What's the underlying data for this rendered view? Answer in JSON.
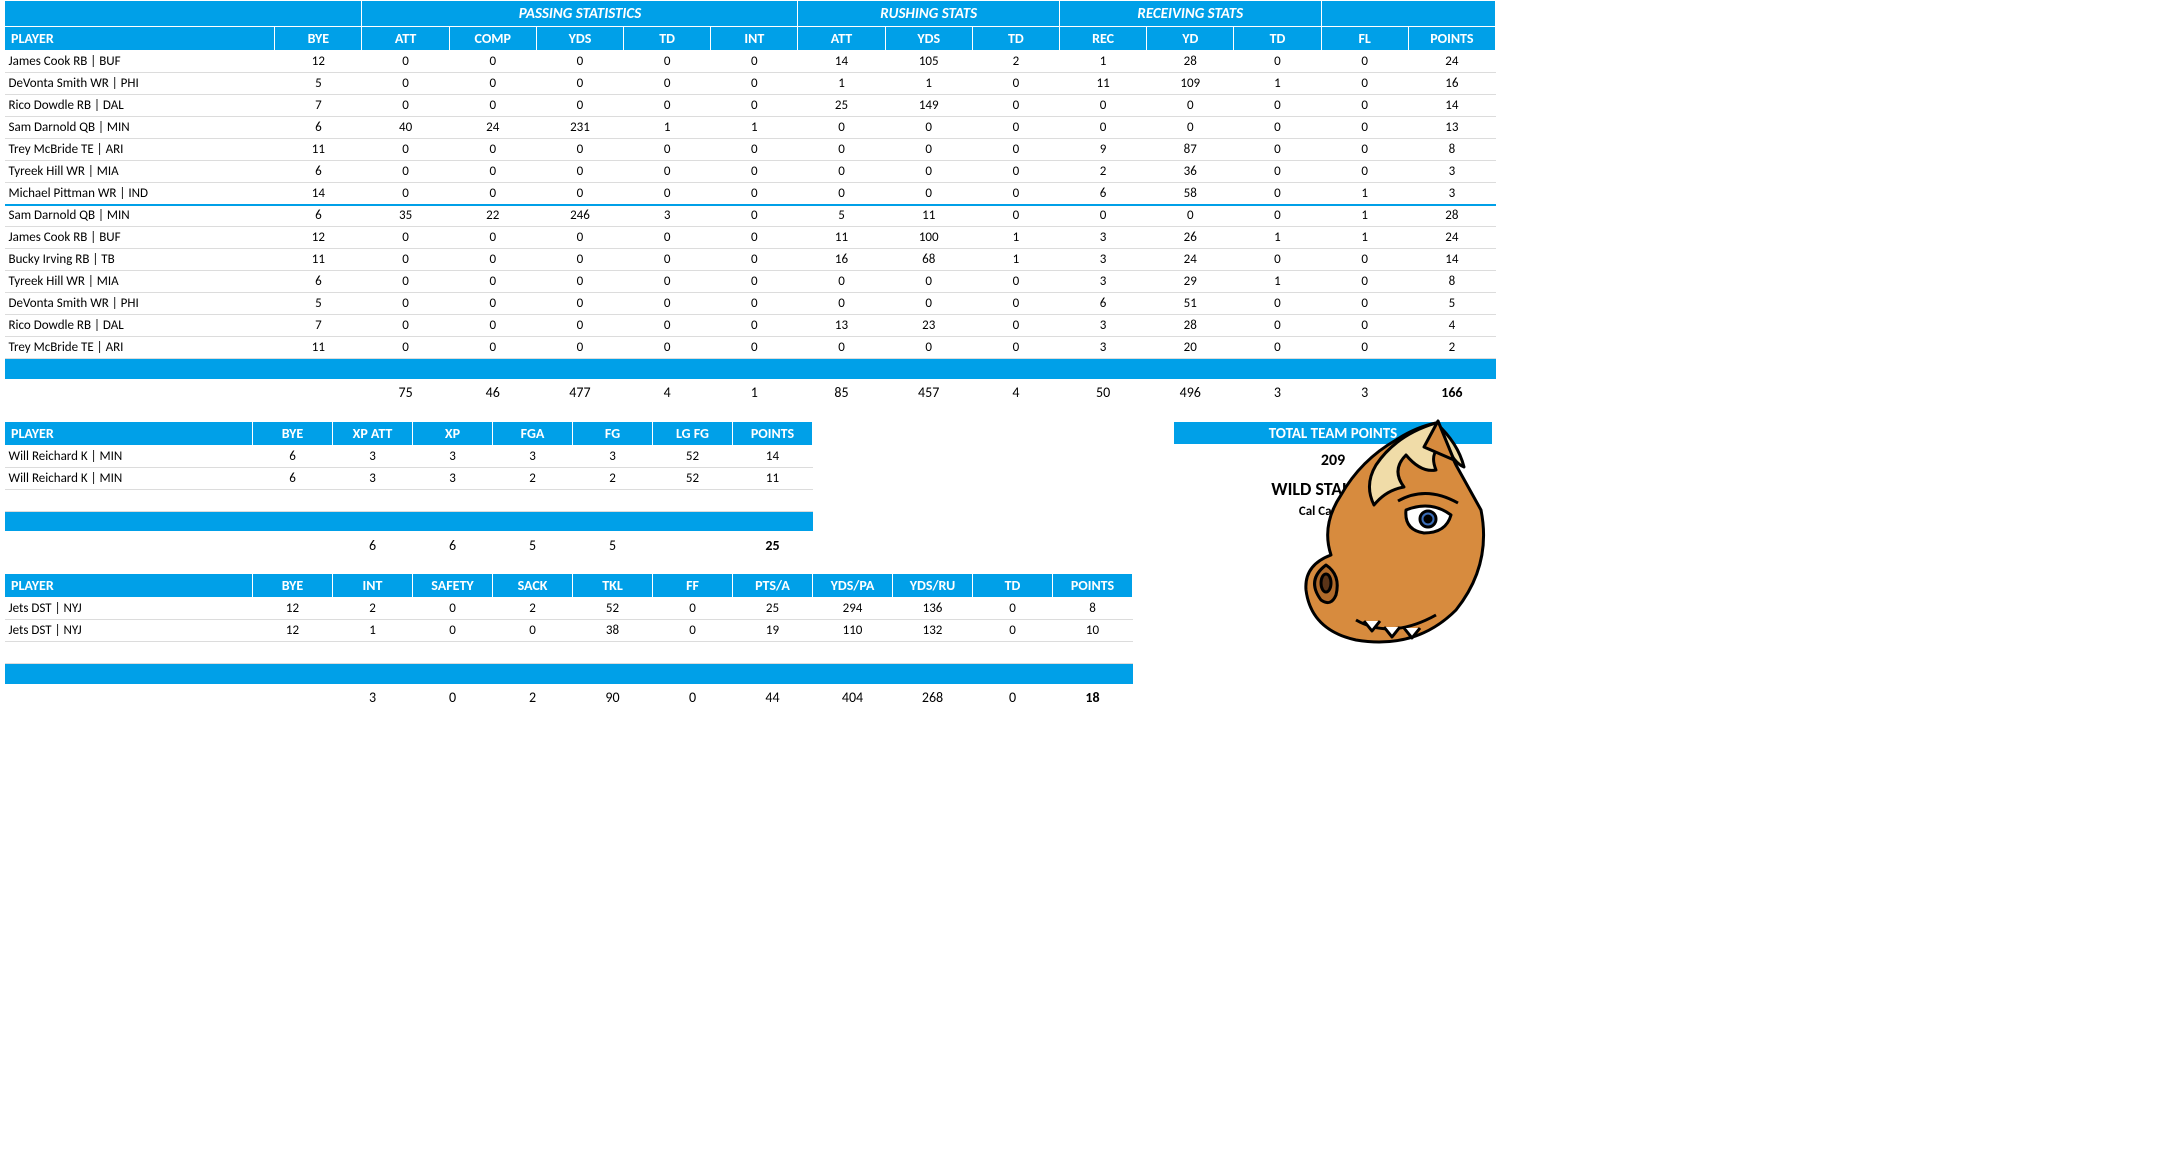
{
  "colors": {
    "primary": "#00a0e8",
    "text": "#000000",
    "bg": "#ffffff",
    "row_border": "#dcdcdc"
  },
  "typography": {
    "family": "Calibri, Arial, sans-serif",
    "base_size_pt": 10,
    "header_size_pt": 11
  },
  "offense": {
    "group_headers": {
      "passing": "PASSING STATISTICS",
      "rushing": "RUSHING STATS",
      "receiving": "RECEIVING STATS"
    },
    "columns": [
      "PLAYER",
      "BYE",
      "ATT",
      "COMP",
      "YDS",
      "TD",
      "INT",
      "ATT",
      "YDS",
      "TD",
      "REC",
      "YD",
      "TD",
      "FL",
      "POINTS"
    ],
    "rows_a": [
      {
        "player": "James Cook RB | BUF",
        "bye": 12,
        "p_att": 0,
        "p_comp": 0,
        "p_yds": 0,
        "p_td": 0,
        "p_int": 0,
        "r_att": 14,
        "r_yds": 105,
        "r_td": 2,
        "rc_rec": 1,
        "rc_yd": 28,
        "rc_td": 0,
        "fl": 0,
        "points": 24
      },
      {
        "player": "DeVonta Smith WR | PHI",
        "bye": 5,
        "p_att": 0,
        "p_comp": 0,
        "p_yds": 0,
        "p_td": 0,
        "p_int": 0,
        "r_att": 1,
        "r_yds": 1,
        "r_td": 0,
        "rc_rec": 11,
        "rc_yd": 109,
        "rc_td": 1,
        "fl": 0,
        "points": 16
      },
      {
        "player": "Rico Dowdle RB | DAL",
        "bye": 7,
        "p_att": 0,
        "p_comp": 0,
        "p_yds": 0,
        "p_td": 0,
        "p_int": 0,
        "r_att": 25,
        "r_yds": 149,
        "r_td": 0,
        "rc_rec": 0,
        "rc_yd": 0,
        "rc_td": 0,
        "fl": 0,
        "points": 14
      },
      {
        "player": "Sam Darnold QB | MIN",
        "bye": 6,
        "p_att": 40,
        "p_comp": 24,
        "p_yds": 231,
        "p_td": 1,
        "p_int": 1,
        "r_att": 0,
        "r_yds": 0,
        "r_td": 0,
        "rc_rec": 0,
        "rc_yd": 0,
        "rc_td": 0,
        "fl": 0,
        "points": 13
      },
      {
        "player": "Trey McBride TE | ARI",
        "bye": 11,
        "p_att": 0,
        "p_comp": 0,
        "p_yds": 0,
        "p_td": 0,
        "p_int": 0,
        "r_att": 0,
        "r_yds": 0,
        "r_td": 0,
        "rc_rec": 9,
        "rc_yd": 87,
        "rc_td": 0,
        "fl": 0,
        "points": 8
      },
      {
        "player": "Tyreek Hill WR | MIA",
        "bye": 6,
        "p_att": 0,
        "p_comp": 0,
        "p_yds": 0,
        "p_td": 0,
        "p_int": 0,
        "r_att": 0,
        "r_yds": 0,
        "r_td": 0,
        "rc_rec": 2,
        "rc_yd": 36,
        "rc_td": 0,
        "fl": 0,
        "points": 3
      },
      {
        "player": "Michael Pittman WR | IND",
        "bye": 14,
        "p_att": 0,
        "p_comp": 0,
        "p_yds": 0,
        "p_td": 0,
        "p_int": 0,
        "r_att": 0,
        "r_yds": 0,
        "r_td": 0,
        "rc_rec": 6,
        "rc_yd": 58,
        "rc_td": 0,
        "fl": 1,
        "points": 3
      }
    ],
    "rows_b": [
      {
        "player": "Sam Darnold QB | MIN",
        "bye": 6,
        "p_att": 35,
        "p_comp": 22,
        "p_yds": 246,
        "p_td": 3,
        "p_int": 0,
        "r_att": 5,
        "r_yds": 11,
        "r_td": 0,
        "rc_rec": 0,
        "rc_yd": 0,
        "rc_td": 0,
        "fl": 1,
        "points": 28
      },
      {
        "player": "James Cook RB | BUF",
        "bye": 12,
        "p_att": 0,
        "p_comp": 0,
        "p_yds": 0,
        "p_td": 0,
        "p_int": 0,
        "r_att": 11,
        "r_yds": 100,
        "r_td": 1,
        "rc_rec": 3,
        "rc_yd": 26,
        "rc_td": 1,
        "fl": 1,
        "points": 24
      },
      {
        "player": "Bucky Irving RB | TB",
        "bye": 11,
        "p_att": 0,
        "p_comp": 0,
        "p_yds": 0,
        "p_td": 0,
        "p_int": 0,
        "r_att": 16,
        "r_yds": 68,
        "r_td": 1,
        "rc_rec": 3,
        "rc_yd": 24,
        "rc_td": 0,
        "fl": 0,
        "points": 14
      },
      {
        "player": "Tyreek Hill WR | MIA",
        "bye": 6,
        "p_att": 0,
        "p_comp": 0,
        "p_yds": 0,
        "p_td": 0,
        "p_int": 0,
        "r_att": 0,
        "r_yds": 0,
        "r_td": 0,
        "rc_rec": 3,
        "rc_yd": 29,
        "rc_td": 1,
        "fl": 0,
        "points": 8
      },
      {
        "player": "DeVonta Smith WR | PHI",
        "bye": 5,
        "p_att": 0,
        "p_comp": 0,
        "p_yds": 0,
        "p_td": 0,
        "p_int": 0,
        "r_att": 0,
        "r_yds": 0,
        "r_td": 0,
        "rc_rec": 6,
        "rc_yd": 51,
        "rc_td": 0,
        "fl": 0,
        "points": 5
      },
      {
        "player": "Rico Dowdle RB | DAL",
        "bye": 7,
        "p_att": 0,
        "p_comp": 0,
        "p_yds": 0,
        "p_td": 0,
        "p_int": 0,
        "r_att": 13,
        "r_yds": 23,
        "r_td": 0,
        "rc_rec": 3,
        "rc_yd": 28,
        "rc_td": 0,
        "fl": 0,
        "points": 4
      },
      {
        "player": "Trey McBride TE | ARI",
        "bye": 11,
        "p_att": 0,
        "p_comp": 0,
        "p_yds": 0,
        "p_td": 0,
        "p_int": 0,
        "r_att": 0,
        "r_yds": 0,
        "r_td": 0,
        "rc_rec": 3,
        "rc_yd": 20,
        "rc_td": 0,
        "fl": 0,
        "points": 2
      }
    ],
    "totals": {
      "p_att": 75,
      "p_comp": 46,
      "p_yds": 477,
      "p_td": 4,
      "p_int": 1,
      "r_att": 85,
      "r_yds": 457,
      "r_td": 4,
      "rc_rec": 50,
      "rc_yd": 496,
      "rc_td": 3,
      "fl": 3,
      "points": 166
    }
  },
  "kicker": {
    "columns": [
      "PLAYER",
      "BYE",
      "XP ATT",
      "XP",
      "FGA",
      "FG",
      "LG FG",
      "POINTS"
    ],
    "rows": [
      {
        "player": "Will Reichard K | MIN",
        "bye": 6,
        "xp_att": 3,
        "xp": 3,
        "fga": 3,
        "fg": 3,
        "lg_fg": 52,
        "points": 14
      },
      {
        "player": "Will Reichard K | MIN",
        "bye": 6,
        "xp_att": 3,
        "xp": 3,
        "fga": 2,
        "fg": 2,
        "lg_fg": 52,
        "points": 11
      }
    ],
    "totals": {
      "xp_att": 6,
      "xp": 6,
      "fga": 5,
      "fg": 5,
      "lg_fg": "",
      "points": 25
    }
  },
  "defense": {
    "columns": [
      "PLAYER",
      "BYE",
      "INT",
      "SAFETY",
      "SACK",
      "TKL",
      "FF",
      "PTS/A",
      "YDS/PA",
      "YDS/RU",
      "TD",
      "POINTS"
    ],
    "rows": [
      {
        "player": "Jets DST | NYJ",
        "bye": 12,
        "int": 2,
        "safety": 0,
        "sack": 2,
        "tkl": 52,
        "ff": 0,
        "pts_a": 25,
        "yds_pa": 294,
        "yds_ru": 136,
        "td": 0,
        "points": 8
      },
      {
        "player": "Jets DST | NYJ",
        "bye": 12,
        "int": 1,
        "safety": 0,
        "sack": 0,
        "tkl": 38,
        "ff": 0,
        "pts_a": 19,
        "yds_pa": 110,
        "yds_ru": 132,
        "td": 0,
        "points": 10
      }
    ],
    "totals": {
      "int": 3,
      "safety": 0,
      "sack": 2,
      "tkl": 90,
      "ff": 0,
      "pts_a": 44,
      "yds_pa": 404,
      "yds_ru": 268,
      "td": 0,
      "points": 18
    }
  },
  "team": {
    "banner_label": "TOTAL TEAM POINTS",
    "total_points": 209,
    "name": "WILD STALLIONS",
    "owner": "Cal Cameron"
  },
  "logo": {
    "description": "cartoon horse head mascot",
    "body_color": "#d78b3e",
    "mane_color": "#f0dca8",
    "outline_color": "#000000",
    "eye_color": "#3b6db8"
  }
}
